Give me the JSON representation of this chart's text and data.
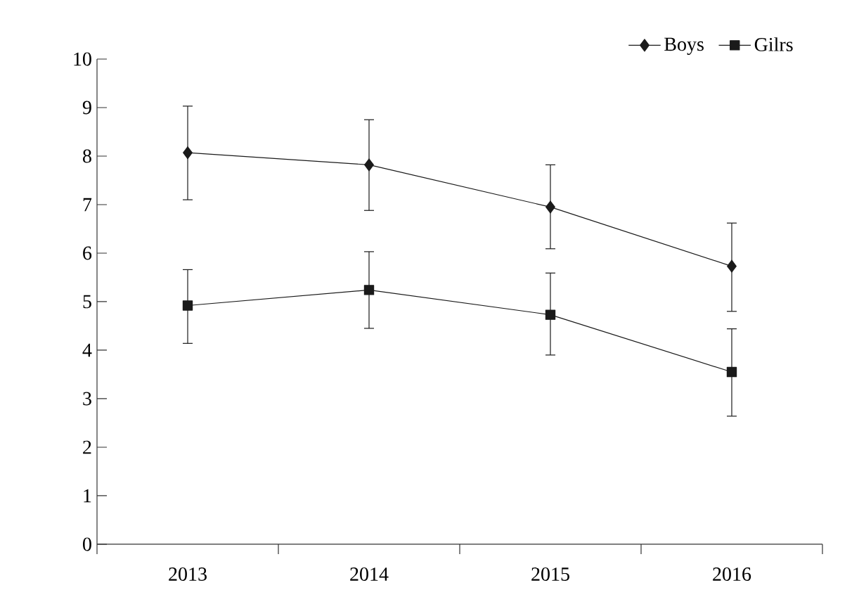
{
  "chart_data": {
    "type": "line",
    "categories": [
      "2013",
      "2014",
      "2015",
      "2016"
    ],
    "series": [
      {
        "name": "Boys",
        "color": "#1a1a1a",
        "marker": "diamond",
        "values": [
          8.07,
          7.82,
          6.95,
          5.73
        ],
        "errors": [
          [
            7.1,
            9.03
          ],
          [
            6.88,
            8.75
          ],
          [
            6.09,
            7.82
          ],
          [
            4.8,
            6.62
          ]
        ]
      },
      {
        "name": "Gilrs",
        "color": "#1a1a1a",
        "marker": "square",
        "values": [
          4.92,
          5.24,
          4.73,
          3.55
        ],
        "errors": [
          [
            4.14,
            5.66
          ],
          [
            4.45,
            6.03
          ],
          [
            3.9,
            5.59
          ],
          [
            2.64,
            4.44
          ]
        ]
      }
    ],
    "ylim": [
      0,
      10
    ],
    "yticks": [
      0,
      1,
      2,
      3,
      4,
      5,
      6,
      7,
      8,
      9,
      10
    ],
    "grid": false,
    "legend": "top right",
    "line_style": "solid"
  }
}
